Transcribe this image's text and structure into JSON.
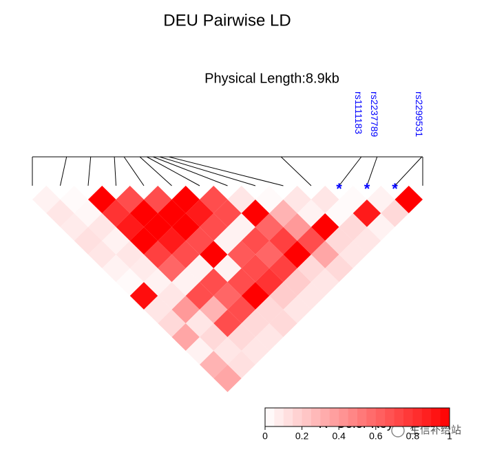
{
  "chart_data": {
    "type": "ldheatmap",
    "title": "DEU Pairwise LD",
    "subtitle": "Physical Length:8.9kb",
    "xlim": [
      0,
      8.9
    ],
    "positions": [
      0,
      0.78,
      1.33,
      1.87,
      2.09,
      2.45,
      2.61,
      2.75,
      2.9,
      3.11,
      5.67,
      7.5,
      7.86,
      8.88,
      8.9
    ],
    "snp_names": [
      null,
      null,
      null,
      null,
      null,
      null,
      null,
      null,
      null,
      null,
      null,
      "rs1111183",
      "rs2237789",
      "rs2299531",
      null
    ],
    "highlight_marker": "*",
    "highlight_color": "#0000ff",
    "color_low": "#ffffff",
    "color_high": "#ff0000",
    "r2": [
      [
        0.05,
        0.1,
        0.08,
        0.12,
        0.1,
        0.05,
        0.02,
        0.95,
        0.1,
        0.15,
        0.35,
        0.05,
        0.3,
        0.35
      ],
      [
        0.02,
        0.03,
        0.1,
        0.05,
        0.1,
        0.08,
        0.05,
        0.1,
        0.4,
        0.1,
        0.15,
        0.1,
        0.12
      ],
      [
        1.0,
        0.8,
        0.9,
        1.0,
        0.75,
        0.6,
        0.05,
        0.7,
        0.3,
        0.7,
        0.15,
        0.1
      ],
      [
        0.7,
        1.0,
        1.0,
        0.9,
        0.7,
        0.05,
        0.7,
        0.6,
        0.7,
        0.15,
        0.1
      ],
      [
        0.7,
        1.0,
        1.0,
        0.7,
        1.0,
        0.05,
        0.7,
        1.0,
        0.15,
        0.15
      ],
      [
        1.0,
        0.9,
        0.7,
        0.05,
        0.65,
        0.7,
        0.8,
        0.2,
        0.1
      ],
      [
        0.7,
        0.7,
        0.05,
        0.7,
        0.6,
        0.75,
        0.2,
        0.1
      ],
      [
        0.1,
        1.0,
        0.6,
        0.75,
        1.0,
        0.15,
        0.1
      ],
      [
        0.02,
        0.3,
        0.4,
        0.7,
        0.35,
        0.15
      ],
      [
        0.1,
        0.05,
        1.0,
        0.15,
        0.1
      ],
      [
        0.1,
        0.02,
        0.15,
        0.1
      ],
      [
        0.02,
        0.9,
        0.05
      ],
      [
        0.05,
        0.15
      ],
      [
        1.0
      ]
    ],
    "color_key": {
      "title": "R² Color Key",
      "lim": [
        0,
        1
      ],
      "ticks": [
        0,
        0.2,
        0.4,
        0.6,
        0.8,
        1
      ],
      "steps": 20
    },
    "watermark": "生信补给站"
  }
}
